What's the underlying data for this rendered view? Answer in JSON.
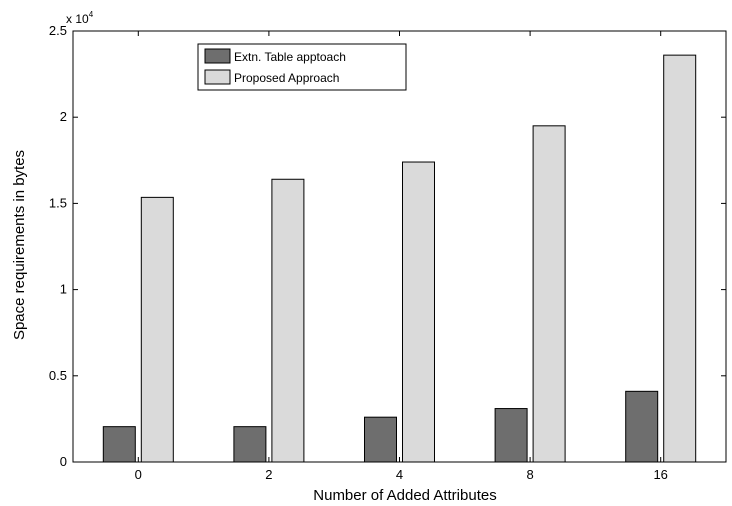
{
  "chart_data": {
    "type": "bar",
    "categories": [
      "0",
      "2",
      "4",
      "8",
      "16"
    ],
    "series": [
      {
        "name": "Extn. Table apptoach",
        "values": [
          2050,
          2050,
          2600,
          3100,
          4100
        ],
        "color": "#6e6e6e"
      },
      {
        "name": "Proposed Approach",
        "values": [
          15350,
          16400,
          17400,
          19500,
          23600
        ],
        "color": "#dadada"
      }
    ],
    "title": "",
    "xlabel": "Number of Added Attributes",
    "ylabel": "Space requirements in bytes",
    "ylim": [
      0,
      25000
    ],
    "yticks": [
      0,
      5000,
      10000,
      15000,
      20000,
      25000
    ],
    "ytick_labels": [
      "0",
      "0.5",
      "1",
      "1.5",
      "2",
      "2.5"
    ],
    "y_multiplier_label": "x 10",
    "y_multiplier_exponent": "4",
    "grid": false,
    "legend_position": "top-left"
  }
}
